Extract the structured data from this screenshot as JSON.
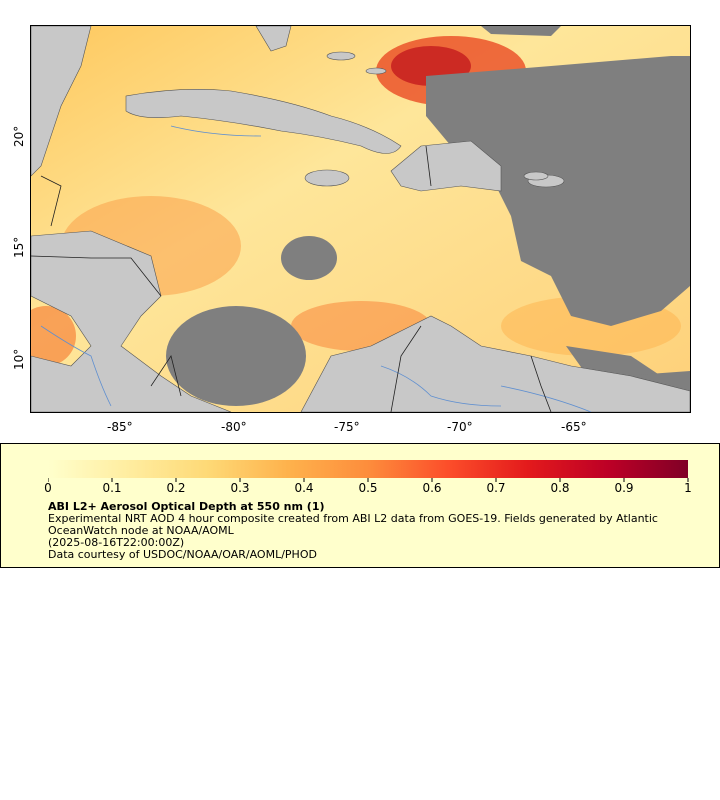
{
  "map": {
    "x_ticks": [
      "-85°",
      "-80°",
      "-75°",
      "-70°",
      "-65°"
    ],
    "y_ticks": [
      "20°",
      "15°",
      "10°"
    ],
    "colors": {
      "land": "#c8c8c8",
      "no_data": "#7f7f7f",
      "borders": "#222222",
      "rivers": "#5f8fd0"
    }
  },
  "colorbar": {
    "ticks": [
      "0",
      "0.1",
      "0.2",
      "0.3",
      "0.4",
      "0.5",
      "0.6",
      "0.7",
      "0.8",
      "0.9",
      "1"
    ],
    "range": [
      0,
      1
    ],
    "colors": [
      "#ffffcc",
      "#ffeda0",
      "#fed976",
      "#feb24c",
      "#fd8d3c",
      "#fc4e2a",
      "#e31a1c",
      "#bd0026",
      "#800026"
    ]
  },
  "legend": {
    "title": "ABI L2+ Aerosol Optical Depth at 550 nm (1)",
    "line1": "Experimental NRT AOD 4 hour composite created from ABI L2 data from GOES-19. Fields generated by Atlantic",
    "line2": "OceanWatch node at NOAA/AOML",
    "line3": "(2025-08-16T22:00:00Z)",
    "line4": "Data courtesy of USDOC/NOAA/OAR/AOML/PHOD"
  }
}
